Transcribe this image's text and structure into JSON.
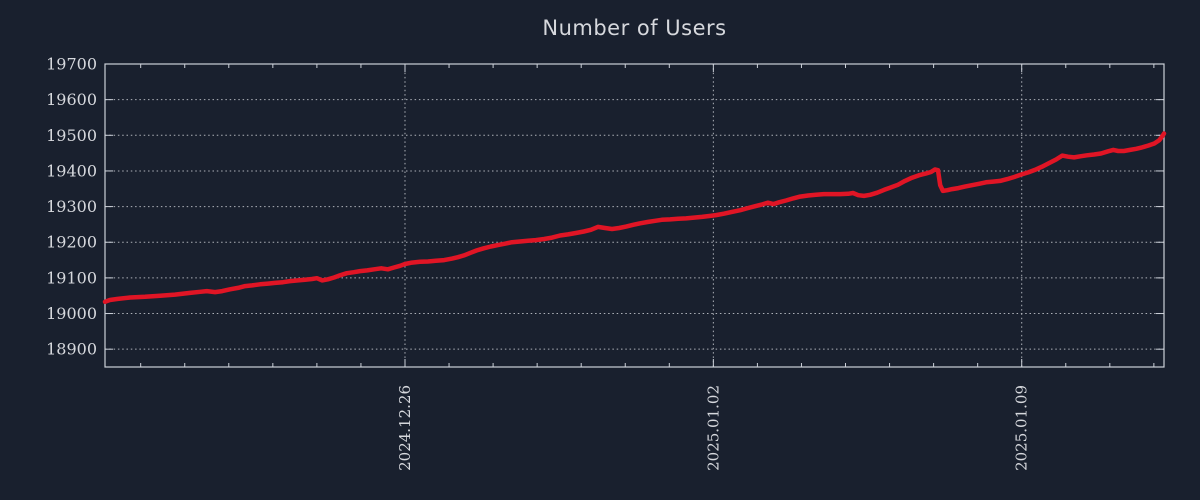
{
  "chart_data": {
    "type": "line",
    "title": "Number of Users",
    "legend": "none",
    "grid": "dotted-major-both-axes",
    "x_axis": {
      "unit": "date",
      "range_days": [
        -6.81,
        17.23
      ],
      "major_ticks": [
        {
          "label": "2024.12.26",
          "day": 0
        },
        {
          "label": "2025.01.02",
          "day": 7
        },
        {
          "label": "2025.01.09",
          "day": 14
        }
      ],
      "minor_tick_days": [
        -6,
        -5,
        -4,
        -3,
        -2,
        -1,
        1,
        2,
        3,
        4,
        5,
        6,
        8,
        9,
        10,
        11,
        12,
        13,
        15,
        16,
        17
      ]
    },
    "y_axis": {
      "range": [
        18850,
        19700
      ],
      "ticks": [
        18900,
        19000,
        19100,
        19200,
        19300,
        19400,
        19500,
        19600,
        19700
      ]
    },
    "series": [
      {
        "name": "Number of Users",
        "color": "#e01525",
        "points": [
          [
            -6.81,
            19033
          ],
          [
            -6.7,
            19038
          ],
          [
            -6.52,
            19041
          ],
          [
            -6.24,
            19045
          ],
          [
            -5.9,
            19047
          ],
          [
            -5.56,
            19050
          ],
          [
            -5.22,
            19053
          ],
          [
            -4.88,
            19058
          ],
          [
            -4.65,
            19061
          ],
          [
            -4.5,
            19063
          ],
          [
            -4.31,
            19060
          ],
          [
            -4.15,
            19063
          ],
          [
            -3.97,
            19068
          ],
          [
            -3.79,
            19072
          ],
          [
            -3.63,
            19077
          ],
          [
            -3.47,
            19079
          ],
          [
            -3.29,
            19082
          ],
          [
            -3.11,
            19084
          ],
          [
            -2.95,
            19086
          ],
          [
            -2.77,
            19088
          ],
          [
            -2.61,
            19091
          ],
          [
            -2.43,
            19093
          ],
          [
            -2.27,
            19095
          ],
          [
            -2.11,
            19097
          ],
          [
            -2.0,
            19099
          ],
          [
            -1.88,
            19093
          ],
          [
            -1.75,
            19096
          ],
          [
            -1.61,
            19101
          ],
          [
            -1.48,
            19107
          ],
          [
            -1.32,
            19113
          ],
          [
            -1.16,
            19116
          ],
          [
            -1.02,
            19119
          ],
          [
            -0.86,
            19121
          ],
          [
            -0.7,
            19124
          ],
          [
            -0.54,
            19127
          ],
          [
            -0.39,
            19124
          ],
          [
            -0.25,
            19129
          ],
          [
            -0.11,
            19134
          ],
          [
            0.0,
            19139
          ],
          [
            0.16,
            19143
          ],
          [
            0.34,
            19145
          ],
          [
            0.52,
            19146
          ],
          [
            0.7,
            19148
          ],
          [
            0.89,
            19150
          ],
          [
            1.07,
            19154
          ],
          [
            1.2,
            19158
          ],
          [
            1.34,
            19163
          ],
          [
            1.48,
            19170
          ],
          [
            1.63,
            19177
          ],
          [
            1.79,
            19183
          ],
          [
            1.95,
            19188
          ],
          [
            2.11,
            19192
          ],
          [
            2.27,
            19196
          ],
          [
            2.43,
            19200
          ],
          [
            2.61,
            19202
          ],
          [
            2.79,
            19204
          ],
          [
            2.97,
            19206
          ],
          [
            3.16,
            19209
          ],
          [
            3.34,
            19213
          ],
          [
            3.52,
            19219
          ],
          [
            3.7,
            19222
          ],
          [
            3.88,
            19226
          ],
          [
            4.06,
            19230
          ],
          [
            4.22,
            19235
          ],
          [
            4.38,
            19243
          ],
          [
            4.54,
            19240
          ],
          [
            4.7,
            19237
          ],
          [
            4.86,
            19240
          ],
          [
            5.02,
            19244
          ],
          [
            5.18,
            19249
          ],
          [
            5.34,
            19253
          ],
          [
            5.52,
            19257
          ],
          [
            5.68,
            19260
          ],
          [
            5.83,
            19263
          ],
          [
            6.02,
            19264
          ],
          [
            6.2,
            19266
          ],
          [
            6.38,
            19267
          ],
          [
            6.56,
            19269
          ],
          [
            6.74,
            19271
          ],
          [
            6.93,
            19274
          ],
          [
            7.06,
            19276
          ],
          [
            7.24,
            19280
          ],
          [
            7.42,
            19285
          ],
          [
            7.61,
            19290
          ],
          [
            7.79,
            19296
          ],
          [
            7.95,
            19301
          ],
          [
            8.11,
            19306
          ],
          [
            8.24,
            19311
          ],
          [
            8.36,
            19307
          ],
          [
            8.49,
            19312
          ],
          [
            8.65,
            19317
          ],
          [
            8.81,
            19323
          ],
          [
            8.97,
            19328
          ],
          [
            9.15,
            19331
          ],
          [
            9.33,
            19333
          ],
          [
            9.51,
            19335
          ],
          [
            9.7,
            19335
          ],
          [
            9.88,
            19335
          ],
          [
            10.06,
            19336
          ],
          [
            10.17,
            19338
          ],
          [
            10.29,
            19332
          ],
          [
            10.42,
            19330
          ],
          [
            10.56,
            19333
          ],
          [
            10.72,
            19339
          ],
          [
            10.88,
            19347
          ],
          [
            11.04,
            19354
          ],
          [
            11.19,
            19361
          ],
          [
            11.35,
            19372
          ],
          [
            11.51,
            19381
          ],
          [
            11.67,
            19388
          ],
          [
            11.83,
            19393
          ],
          [
            11.94,
            19397
          ],
          [
            12.03,
            19404
          ],
          [
            12.1,
            19402
          ],
          [
            12.15,
            19360
          ],
          [
            12.21,
            19344
          ],
          [
            12.31,
            19346
          ],
          [
            12.42,
            19349
          ],
          [
            12.56,
            19352
          ],
          [
            12.71,
            19356
          ],
          [
            12.87,
            19360
          ],
          [
            13.03,
            19364
          ],
          [
            13.19,
            19368
          ],
          [
            13.35,
            19370
          ],
          [
            13.51,
            19372
          ],
          [
            13.67,
            19377
          ],
          [
            13.83,
            19383
          ],
          [
            13.99,
            19390
          ],
          [
            14.15,
            19396
          ],
          [
            14.3,
            19403
          ],
          [
            14.46,
            19412
          ],
          [
            14.62,
            19422
          ],
          [
            14.78,
            19432
          ],
          [
            14.92,
            19443
          ],
          [
            15.05,
            19440
          ],
          [
            15.19,
            19438
          ],
          [
            15.33,
            19441
          ],
          [
            15.48,
            19444
          ],
          [
            15.64,
            19446
          ],
          [
            15.8,
            19449
          ],
          [
            15.96,
            19455
          ],
          [
            16.08,
            19459
          ],
          [
            16.19,
            19456
          ],
          [
            16.32,
            19456
          ],
          [
            16.46,
            19459
          ],
          [
            16.6,
            19462
          ],
          [
            16.73,
            19466
          ],
          [
            16.87,
            19471
          ],
          [
            17.01,
            19477
          ],
          [
            17.12,
            19486
          ],
          [
            17.19,
            19497
          ],
          [
            17.23,
            19505
          ]
        ]
      }
    ]
  },
  "style": {
    "background_color": "#19202e",
    "line_color": "#e01525",
    "grid_color": "#c9ccd2",
    "border_color": "#ccd1d9",
    "text_color": "#d6d8dd",
    "title_color": "#d6d8dd"
  }
}
